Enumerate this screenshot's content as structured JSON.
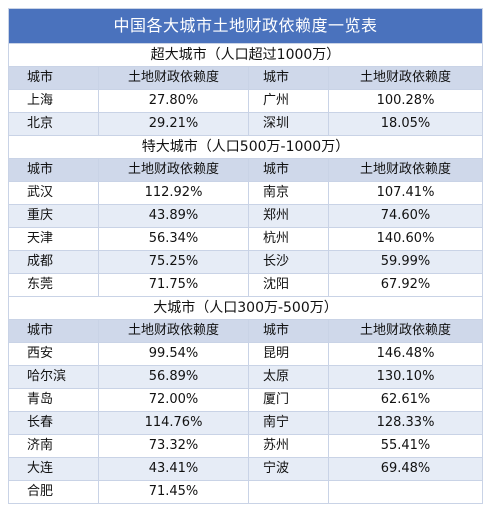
{
  "title": "中国各大城市土地财政依赖度一览表",
  "header": {
    "city": "城市",
    "ratio": "土地财政依赖度"
  },
  "sections": [
    {
      "label": "超大城市（人口超过1000万）",
      "rows": [
        [
          [
            "上海",
            "27.80%"
          ],
          [
            "广州",
            "100.28%"
          ]
        ],
        [
          [
            "北京",
            "29.21%"
          ],
          [
            "深圳",
            "18.05%"
          ]
        ]
      ]
    },
    {
      "label": "特大城市（人口500万-1000万）",
      "rows": [
        [
          [
            "武汉",
            "112.92%"
          ],
          [
            "南京",
            "107.41%"
          ]
        ],
        [
          [
            "重庆",
            "43.89%"
          ],
          [
            "郑州",
            "74.60%"
          ]
        ],
        [
          [
            "天津",
            "56.34%"
          ],
          [
            "杭州",
            "140.60%"
          ]
        ],
        [
          [
            "成都",
            "75.25%"
          ],
          [
            "长沙",
            "59.99%"
          ]
        ],
        [
          [
            "东莞",
            "71.75%"
          ],
          [
            "沈阳",
            "67.92%"
          ]
        ]
      ]
    },
    {
      "label": "大城市（人口300万-500万）",
      "rows": [
        [
          [
            "西安",
            "99.54%"
          ],
          [
            "昆明",
            "146.48%"
          ]
        ],
        [
          [
            "哈尔滨",
            "56.89%"
          ],
          [
            "太原",
            "130.10%"
          ]
        ],
        [
          [
            "青岛",
            "72.00%"
          ],
          [
            "厦门",
            "62.61%"
          ]
        ],
        [
          [
            "长春",
            "114.76%"
          ],
          [
            "南宁",
            "128.33%"
          ]
        ],
        [
          [
            "济南",
            "73.32%"
          ],
          [
            "苏州",
            "55.41%"
          ]
        ],
        [
          [
            "大连",
            "43.41%"
          ],
          [
            "宁波",
            "69.48%"
          ]
        ],
        [
          [
            "合肥",
            "71.45%"
          ],
          [
            "",
            ""
          ]
        ]
      ]
    }
  ]
}
